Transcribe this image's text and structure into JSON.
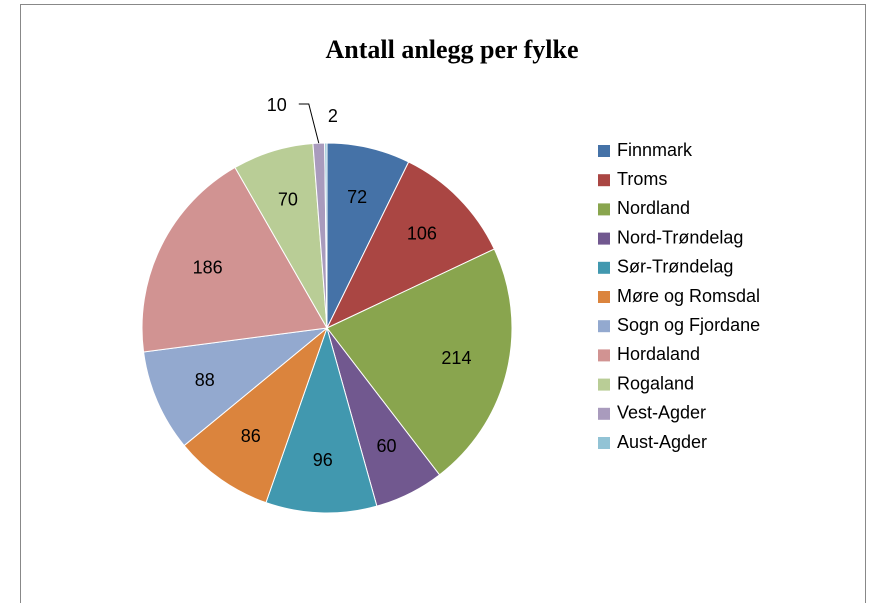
{
  "chart_data": {
    "type": "pie",
    "title": "Antall anlegg per fylke",
    "categories": [
      "Finnmark",
      "Troms",
      "Nordland",
      "Nord-Trøndelag",
      "Sør-Trøndelag",
      "Møre og Romsdal",
      "Sogn og Fjordane",
      "Hordaland",
      "Rogaland",
      "Vest-Agder",
      "Aust-Agder"
    ],
    "values": [
      72,
      106,
      214,
      60,
      96,
      86,
      88,
      186,
      70,
      10,
      2
    ],
    "colors": [
      "#4572a7",
      "#aa4643",
      "#89a54e",
      "#71588f",
      "#4198af",
      "#db843d",
      "#93a9cf",
      "#d19392",
      "#b9cd96",
      "#a99bbd",
      "#92c3d5"
    ],
    "legend": "right"
  }
}
